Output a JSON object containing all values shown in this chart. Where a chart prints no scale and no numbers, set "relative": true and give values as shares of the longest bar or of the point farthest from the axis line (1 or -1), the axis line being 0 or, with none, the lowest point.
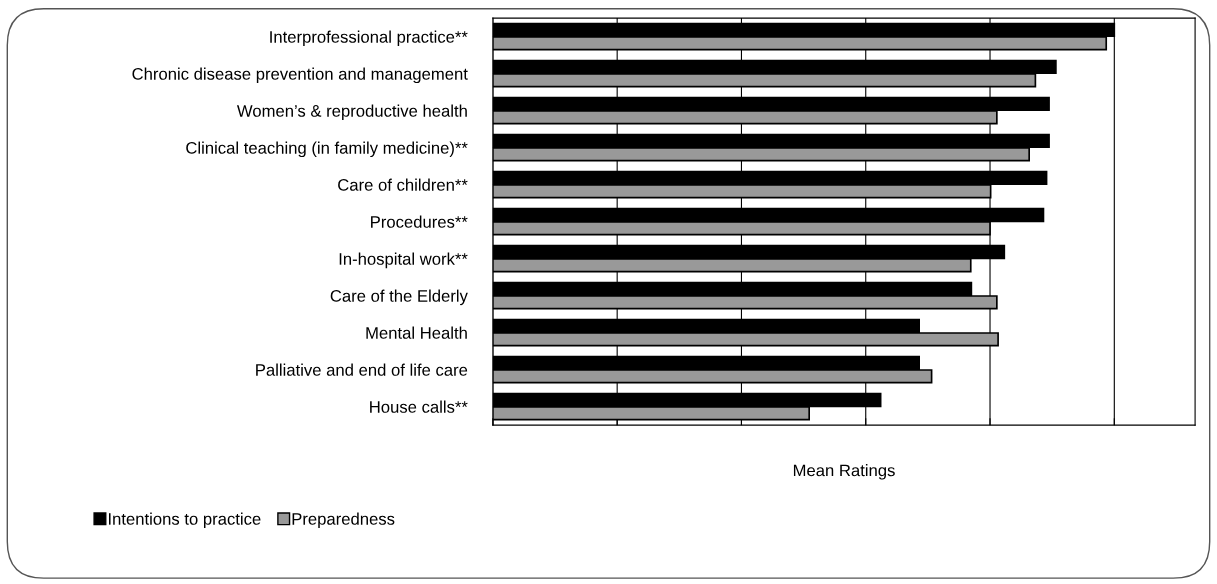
{
  "chart_data": {
    "type": "bar",
    "orientation": "horizontal",
    "relative": true,
    "xlabel": "Mean Ratings",
    "categories": [
      "Interprofessional practice**",
      "Chronic disease prevention and management",
      "Women’s & reproductive health",
      "Clinical teaching (in family medicine)**",
      "Care of children**",
      "Procedures**",
      "In-hospital work**",
      "Care of the Elderly",
      "Mental Health",
      "Palliative and end of life care",
      "House calls**"
    ],
    "series": [
      {
        "name": "Intentions to practice",
        "color": "#000000",
        "values": [
          1.0,
          0.906,
          0.895,
          0.895,
          0.891,
          0.886,
          0.823,
          0.77,
          0.686,
          0.686,
          0.624
        ]
      },
      {
        "name": "Preparedness",
        "color": "#999999",
        "values": [
          0.987,
          0.873,
          0.811,
          0.863,
          0.801,
          0.8,
          0.769,
          0.811,
          0.813,
          0.706,
          0.509
        ]
      }
    ],
    "grid": "x",
    "legend": "bottom left"
  }
}
